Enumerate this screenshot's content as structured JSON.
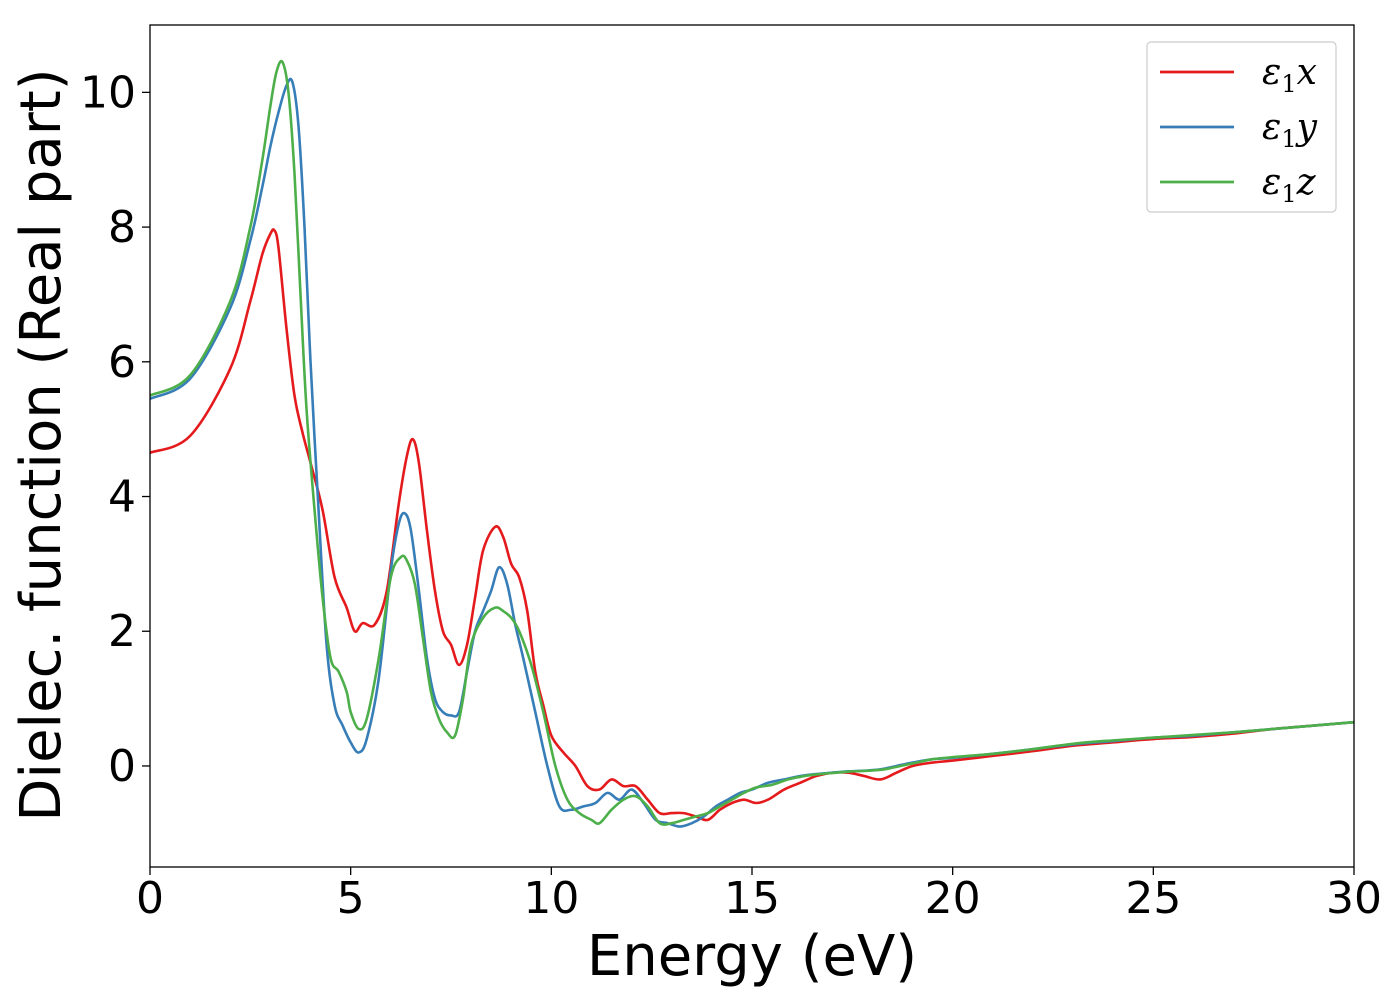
{
  "chart_data": {
    "type": "line",
    "xlabel": "Energy (eV)",
    "ylabel": "Dielec. function (Real part)",
    "xlim": [
      0,
      30
    ],
    "ylim": [
      -1.5,
      11
    ],
    "xticks": [
      0,
      5,
      10,
      15,
      20,
      25,
      30
    ],
    "yticks": [
      0,
      2,
      4,
      6,
      8,
      10
    ],
    "grid": false,
    "legend_position": "top-right",
    "series": [
      {
        "name": "ε₁x",
        "legend": {
          "base": "ε",
          "sub": "1",
          "var": "x"
        },
        "color": "#e41a1c",
        "x": [
          0,
          1,
          2,
          2.5,
          2.8,
          3.0,
          3.1,
          3.2,
          3.4,
          3.6,
          3.8,
          4.0,
          4.3,
          4.6,
          4.9,
          5.1,
          5.3,
          5.6,
          5.9,
          6.2,
          6.4,
          6.55,
          6.7,
          6.9,
          7.1,
          7.3,
          7.5,
          7.7,
          7.9,
          8.1,
          8.3,
          8.6,
          8.8,
          9.0,
          9.2,
          9.4,
          9.6,
          9.8,
          10.0,
          10.3,
          10.6,
          10.9,
          11.2,
          11.5,
          11.8,
          12.1,
          12.4,
          12.7,
          13.0,
          13.3,
          13.6,
          13.9,
          14.2,
          14.5,
          14.8,
          15.1,
          15.4,
          15.8,
          16.2,
          16.6,
          17.0,
          17.4,
          17.8,
          18.2,
          18.6,
          19.0,
          19.5,
          20.0,
          21.0,
          22.0,
          23.0,
          24.0,
          25.0,
          26.0,
          27.0,
          28.0,
          29.0,
          30.0
        ],
        "y": [
          4.65,
          4.9,
          5.9,
          6.9,
          7.6,
          7.9,
          7.95,
          7.7,
          6.5,
          5.5,
          4.95,
          4.5,
          3.8,
          2.8,
          2.35,
          2.0,
          2.12,
          2.1,
          2.6,
          3.9,
          4.6,
          4.85,
          4.5,
          3.5,
          2.6,
          2.0,
          1.8,
          1.5,
          1.8,
          2.5,
          3.2,
          3.55,
          3.4,
          3.0,
          2.8,
          2.3,
          1.4,
          0.9,
          0.45,
          0.2,
          0.0,
          -0.3,
          -0.35,
          -0.2,
          -0.3,
          -0.3,
          -0.5,
          -0.7,
          -0.7,
          -0.7,
          -0.75,
          -0.8,
          -0.65,
          -0.55,
          -0.5,
          -0.55,
          -0.5,
          -0.35,
          -0.25,
          -0.15,
          -0.1,
          -0.1,
          -0.15,
          -0.2,
          -0.1,
          0.0,
          0.05,
          0.08,
          0.15,
          0.22,
          0.3,
          0.35,
          0.4,
          0.43,
          0.48,
          0.55,
          0.6,
          0.65
        ]
      },
      {
        "name": "ε₁y",
        "legend": {
          "base": "ε",
          "sub": "1",
          "var": "y"
        },
        "color": "#377eb8",
        "x": [
          0,
          1,
          2,
          2.5,
          2.8,
          3.0,
          3.2,
          3.4,
          3.55,
          3.7,
          3.85,
          4.0,
          4.2,
          4.4,
          4.6,
          4.8,
          5.0,
          5.2,
          5.4,
          5.7,
          6.0,
          6.2,
          6.35,
          6.5,
          6.7,
          6.9,
          7.1,
          7.3,
          7.5,
          7.7,
          7.9,
          8.1,
          8.3,
          8.5,
          8.7,
          8.9,
          9.1,
          9.3,
          9.6,
          9.9,
          10.2,
          10.5,
          10.8,
          11.1,
          11.4,
          11.7,
          12.0,
          12.3,
          12.6,
          12.9,
          13.2,
          13.5,
          13.8,
          14.1,
          14.4,
          14.7,
          15.0,
          15.4,
          15.8,
          16.2,
          16.6,
          17.0,
          17.4,
          17.8,
          18.2,
          18.6,
          19.0,
          19.5,
          20.0,
          21.0,
          22.0,
          23.0,
          24.0,
          25.0,
          26.0,
          27.0,
          28.0,
          29.0,
          30.0
        ],
        "y": [
          5.45,
          5.75,
          6.8,
          7.8,
          8.6,
          9.2,
          9.7,
          10.1,
          10.15,
          9.5,
          8.0,
          6.0,
          3.8,
          1.8,
          0.9,
          0.6,
          0.35,
          0.2,
          0.4,
          1.3,
          2.9,
          3.6,
          3.75,
          3.5,
          2.6,
          1.6,
          1.0,
          0.8,
          0.75,
          0.8,
          1.4,
          2.0,
          2.3,
          2.6,
          2.95,
          2.7,
          2.1,
          1.6,
          0.8,
          0.0,
          -0.6,
          -0.65,
          -0.6,
          -0.55,
          -0.4,
          -0.5,
          -0.35,
          -0.55,
          -0.8,
          -0.85,
          -0.9,
          -0.85,
          -0.75,
          -0.6,
          -0.5,
          -0.4,
          -0.35,
          -0.25,
          -0.2,
          -0.15,
          -0.12,
          -0.1,
          -0.08,
          -0.07,
          -0.05,
          0.0,
          0.05,
          0.1,
          0.12,
          0.18,
          0.25,
          0.32,
          0.37,
          0.42,
          0.45,
          0.5,
          0.55,
          0.6,
          0.65
        ]
      },
      {
        "name": "ε₁z",
        "legend": {
          "base": "ε",
          "sub": "1",
          "var": "z"
        },
        "color": "#4daf4a",
        "x": [
          0,
          1,
          2,
          2.5,
          2.8,
          3.0,
          3.15,
          3.3,
          3.45,
          3.6,
          3.75,
          3.9,
          4.1,
          4.3,
          4.5,
          4.7,
          4.9,
          5.0,
          5.2,
          5.4,
          5.7,
          6.0,
          6.25,
          6.4,
          6.6,
          6.8,
          7.0,
          7.2,
          7.4,
          7.6,
          7.8,
          8.0,
          8.3,
          8.6,
          8.8,
          9.0,
          9.2,
          9.5,
          9.8,
          10.1,
          10.4,
          10.7,
          11.0,
          11.2,
          11.5,
          11.8,
          12.1,
          12.4,
          12.7,
          13.0,
          13.3,
          13.6,
          13.9,
          14.2,
          14.5,
          14.8,
          15.1,
          15.5,
          15.9,
          16.3,
          16.7,
          17.1,
          17.5,
          17.9,
          18.3,
          18.7,
          19.1,
          19.5,
          20.0,
          21.0,
          22.0,
          23.0,
          24.0,
          25.0,
          26.0,
          27.0,
          28.0,
          29.0,
          30.0
        ],
        "y": [
          5.5,
          5.8,
          6.9,
          8.0,
          9.0,
          9.8,
          10.3,
          10.45,
          10.0,
          8.8,
          7.0,
          5.3,
          3.8,
          2.5,
          1.6,
          1.4,
          1.1,
          0.8,
          0.55,
          0.7,
          1.6,
          2.8,
          3.1,
          3.05,
          2.7,
          1.9,
          1.1,
          0.7,
          0.5,
          0.45,
          1.0,
          1.8,
          2.2,
          2.35,
          2.3,
          2.2,
          2.0,
          1.5,
          0.8,
          0.0,
          -0.5,
          -0.7,
          -0.8,
          -0.85,
          -0.65,
          -0.5,
          -0.45,
          -0.6,
          -0.85,
          -0.85,
          -0.8,
          -0.75,
          -0.7,
          -0.6,
          -0.5,
          -0.4,
          -0.32,
          -0.28,
          -0.2,
          -0.15,
          -0.12,
          -0.1,
          -0.08,
          -0.07,
          -0.05,
          0.0,
          0.05,
          0.1,
          0.13,
          0.18,
          0.25,
          0.33,
          0.38,
          0.42,
          0.46,
          0.5,
          0.55,
          0.6,
          0.65
        ]
      }
    ]
  }
}
